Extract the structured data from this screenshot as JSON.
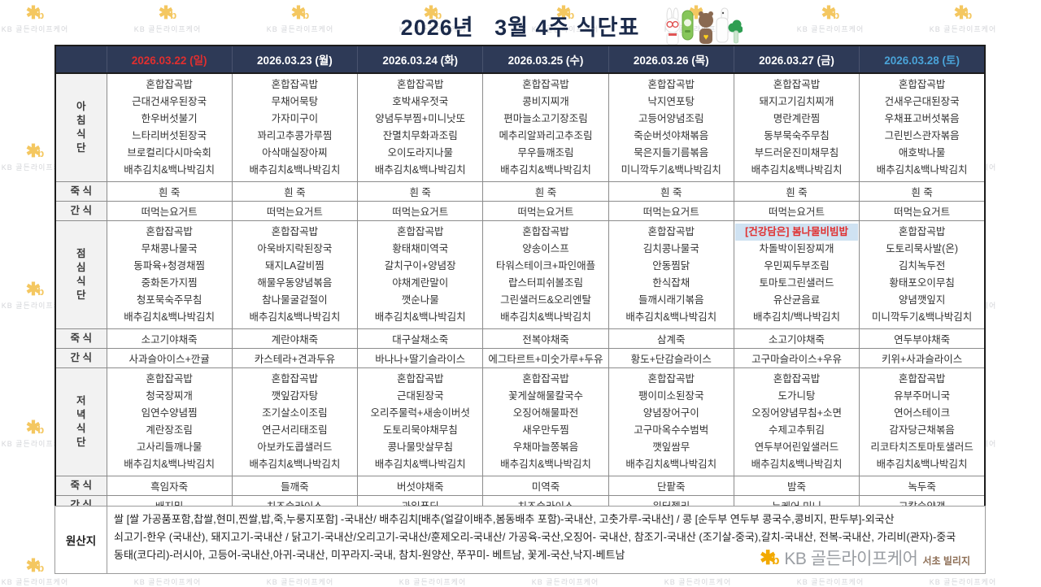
{
  "title": "2026년   3월 4주 식단표",
  "colors": {
    "header_navy": "#2e3a57",
    "sunday_red": "#e02f2f",
    "saturday_blue": "#4aa3d8",
    "highlight_bg": "#cfe2f2",
    "highlight_text": "#e02f2f",
    "kb_yellow": "#f2a900"
  },
  "watermark": {
    "text": "KB 골든라이프케어"
  },
  "table": {
    "dates": [
      {
        "text": "2026.03.22 (일)",
        "type": "sun"
      },
      {
        "text": "2026.03.23 (월)",
        "type": "weekday"
      },
      {
        "text": "2026.03.24 (화)",
        "type": "weekday"
      },
      {
        "text": "2026.03.25 (수)",
        "type": "weekday"
      },
      {
        "text": "2026.03.26 (목)",
        "type": "weekday"
      },
      {
        "text": "2026.03.27 (금)",
        "type": "weekday"
      },
      {
        "text": "2026.03.28 (토)",
        "type": "sat"
      }
    ],
    "sections": [
      {
        "kind": "meal",
        "label": "아침식단",
        "columns": [
          [
            "혼합잡곡밥",
            "근대건새우된장국",
            "한우버섯불기",
            "느타리버섯된장국",
            "브로컬리다시마숙회",
            "배추김치&백나박김치"
          ],
          [
            "혼합잡곡밥",
            "무채어묵탕",
            "가자미구이",
            "꽈리고추콩가루찜",
            "아삭매실장아찌",
            "배추김치&백나박김치"
          ],
          [
            "혼합잡곡밥",
            "호박새우젓국",
            "양념두부찜+미니낫또",
            "잔멸치무화과조림",
            "오이도라지나물",
            "배추김치&백나박김치"
          ],
          [
            "혼합잡곡밥",
            "콩비지찌개",
            "편마늘소고기장조림",
            "메추리알꽈리고추조림",
            "무우들깨조림",
            "배추김치&백나박김치"
          ],
          [
            "혼합잡곡밥",
            "낙지연포탕",
            "고등어양념조림",
            "죽순버섯야채볶음",
            "묵은지들기름볶음",
            "미니깍두기&백나박김치"
          ],
          [
            "혼합잡곡밥",
            "돼지고기김치찌개",
            "명란계란찜",
            "동부묵숙주무침",
            "부드러운진미채무침",
            "배추김치&백나박김치"
          ],
          [
            "혼합잡곡밥",
            "건새우근대된장국",
            "우채표고버섯볶음",
            "그린빈스관자볶음",
            "애호박나물",
            "배추김치&백나박김치"
          ]
        ]
      },
      {
        "kind": "row",
        "thick": true,
        "label": "죽 식",
        "cells": [
          "흰 죽",
          "흰 죽",
          "흰 죽",
          "흰 죽",
          "흰 죽",
          "흰 죽",
          "흰 죽"
        ]
      },
      {
        "kind": "row",
        "label": "간 식",
        "cells": [
          "떠먹는요거트",
          "떠먹는요거트",
          "떠먹는요거트",
          "떠먹는요거트",
          "떠먹는요거트",
          "떠먹는요거트",
          "떠먹는요거트"
        ]
      },
      {
        "kind": "meal",
        "label": "점심식단",
        "columns": [
          [
            "혼합잡곡밥",
            "무채콩나물국",
            "동파육+청경채찜",
            "중화돈가지찜",
            "청포묵숙주무침",
            "배추김치&백나박김치"
          ],
          [
            "혼합잡곡밥",
            "아욱바지락된장국",
            "돼지LA갈비찜",
            "해물우동양념볶음",
            "참나물굴겉절이",
            "배추김치&백나박김치"
          ],
          [
            "혼합잡곡밥",
            "황태채미역국",
            "갈치구이+양념장",
            "야채계란말이",
            "깻순나물",
            "배추김치&백나박김치"
          ],
          [
            "혼합잡곡밥",
            "양송이스프",
            "타워스테이크+파인애플",
            "랍스터피쉬볼조림",
            "그린샐러드&오리엔탈",
            "배추김치&백나박김치"
          ],
          [
            "혼합잡곡밥",
            "김치콩나물국",
            "안동찜닭",
            "한식잡채",
            "들깨시래기볶음",
            "배추김치&백나박김치"
          ],
          [
            {
              "text": "[건강담은] 봄나물비빔밥",
              "highlight": true
            },
            "차돌박이된장찌개",
            "우민찌두부조림",
            "토마토그린샐러드",
            "유산균음료",
            "배추김치/백나박김치"
          ],
          [
            "혼합잡곡밥",
            "도토리묵사발(온)",
            "김치녹두전",
            "황태포오이무침",
            "양념깻잎지",
            "미니깍두기&백나박김치"
          ]
        ]
      },
      {
        "kind": "row",
        "thick": true,
        "label": "죽 식",
        "cells": [
          "소고기야채죽",
          "계란야채죽",
          "대구살채소죽",
          "전복야채죽",
          "삼계죽",
          "소고기야채죽",
          "연두부야채죽"
        ]
      },
      {
        "kind": "row",
        "label": "간 식",
        "cells": [
          "사과슬아이스+깐귤",
          "카스테라+견과두유",
          "바나나+딸기슬라이스",
          "에그타르트+미숫가루+두유",
          "황도+단감슬라이스",
          "고구마슬라이스+우유",
          "키위+사과슬라이스"
        ]
      },
      {
        "kind": "meal",
        "label": "저녁식단",
        "columns": [
          [
            "혼합잡곡밥",
            "청국장찌개",
            "임연수양념찜",
            "계란장조림",
            "고사리들깨나물",
            "배추김치&백나박김치"
          ],
          [
            "혼합잡곡밥",
            "깻잎감자탕",
            "조기살소이조림",
            "연근서리태조림",
            "아보카도콥샐러드",
            "배추김치&백나박김치"
          ],
          [
            "혼합잡곡밥",
            "근대된장국",
            "오리주물럭+새송이버섯",
            "도토리묵야채무침",
            "콩나물맛살무침",
            "배추김치&백나박김치"
          ],
          [
            "혼합잡곡밥",
            "꽃게살해물칼국수",
            "오징어해물파전",
            "새우만두찜",
            "우채마늘쫑볶음",
            "배추김치&백나박김치"
          ],
          [
            "혼합잡곡밥",
            "팽이미소된장국",
            "양념장어구이",
            "고구마옥수수범벅",
            "깻잎쌈무",
            "배추김치&백나박김치"
          ],
          [
            "혼합잡곡밥",
            "도가니탕",
            "오징어양념무침+소면",
            "수제고추튀김",
            "연두부어린잎샐러드",
            "배추김치&백나박김치"
          ],
          [
            "혼합잡곡밥",
            "유부주머니국",
            "연어스테이크",
            "감자당근채볶음",
            "리코타치즈토마토샐러드",
            "배추김치&백나박김치"
          ]
        ]
      },
      {
        "kind": "row",
        "thick": true,
        "label": "죽 식",
        "cells": [
          "흑임자죽",
          "들깨죽",
          "버섯야채죽",
          "미역죽",
          "단팥죽",
          "밤죽",
          "녹두죽"
        ]
      },
      {
        "kind": "row",
        "label": "간 식",
        "cells": [
          "배지밀",
          "치즈슬라이스",
          "과일푸딩",
          "치즈슬라이스",
          "워터젤리",
          "뉴케어 미니",
          "고칼슘양갱"
        ]
      }
    ]
  },
  "origin": {
    "label": "원산지",
    "lines": [
      "쌀 [쌀 가공품포함,찹쌀,현미,찐쌀,밥,죽,누룽지포함] -국내산/ 배추김치[배추(얼갈이배추,봄동배추 포함)-국내산, 고춧가루-국내산] / 콩 [순두부 연두부 콩국수,콩비지, 판두부]-외국산",
      "쇠고기-한우 (국내산), 돼지고기-국내산 / 닭고기-국내산/오리고기-국내산/훈제오리-국내산/ 가공육-국산,오징어- 국내산, 참조기-국내산 (조기살-중국),갈치-국내산, 전복-국내산, 가리비(관자)-중국",
      "동태(코다리)-러시아,  고등어-국내산,아귀-국내산, 미꾸라지-국내,  참치-원양산, 쭈꾸미- 베트남, 꽃게-국산,낙지-베트남"
    ]
  },
  "footer": {
    "brand": "KB 골든라이프케어",
    "site": "서초 빌리지"
  }
}
